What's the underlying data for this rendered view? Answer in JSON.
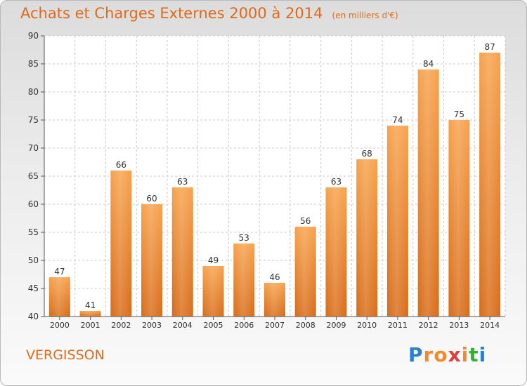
{
  "chart_data": {
    "type": "bar",
    "title": "Achats et Charges Externes 2000 à 2014",
    "subtitle": "(en milliers d'€)",
    "categories": [
      "2000",
      "2001",
      "2002",
      "2003",
      "2004",
      "2005",
      "2006",
      "2007",
      "2008",
      "2009",
      "2010",
      "2011",
      "2012",
      "2013",
      "2014"
    ],
    "values": [
      47,
      41,
      66,
      60,
      63,
      49,
      53,
      46,
      56,
      63,
      68,
      74,
      84,
      75,
      87
    ],
    "ylim": [
      40,
      90
    ],
    "yticks": [
      40,
      45,
      50,
      55,
      60,
      65,
      70,
      75,
      80,
      85,
      90
    ],
    "grid": true,
    "bar_color": "#f08a2c"
  },
  "commune": "VERGISSON",
  "logo": {
    "letters": [
      "P",
      "r",
      "o",
      "x",
      "i",
      "t",
      "i"
    ],
    "colors": [
      "#2a7fd0",
      "#f08a2c",
      "#f08a2c",
      "#e23b3b",
      "#f08a2c",
      "#3aaa3a",
      "#2a7fd0"
    ]
  }
}
